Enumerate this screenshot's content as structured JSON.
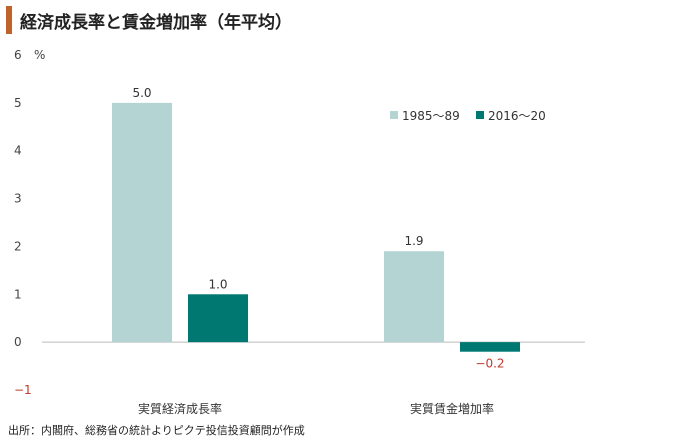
{
  "title": "経済成長率と賃金増加率（年平均）",
  "source": "出所：内閣府、総務省の統計よりピクテ投信投資顧問が作成",
  "chart_data": {
    "type": "bar",
    "title": "経済成長率と賃金増加率（年平均）",
    "ylabel": "%",
    "ylim": [
      -1,
      6
    ],
    "yticks": [
      6,
      5,
      4,
      3,
      2,
      1,
      0,
      -1
    ],
    "ytick_labels": [
      "6",
      "5",
      "4",
      "3",
      "2",
      "1",
      "0",
      "−1"
    ],
    "unit_label": "%",
    "categories": [
      "実質経済成長率",
      "実質賃金増加率"
    ],
    "series": [
      {
        "name": "1985〜89",
        "values": [
          5.0,
          1.9
        ],
        "labels": [
          "5.0",
          "1.9"
        ],
        "color": "#b4d4d4"
      },
      {
        "name": "2016〜20",
        "values": [
          1.0,
          -0.2
        ],
        "labels": [
          "1.0",
          "−0.2"
        ],
        "color": "#007872"
      }
    ],
    "legend": "top-right",
    "grid": false,
    "negative_label_color": "#c0392b"
  }
}
